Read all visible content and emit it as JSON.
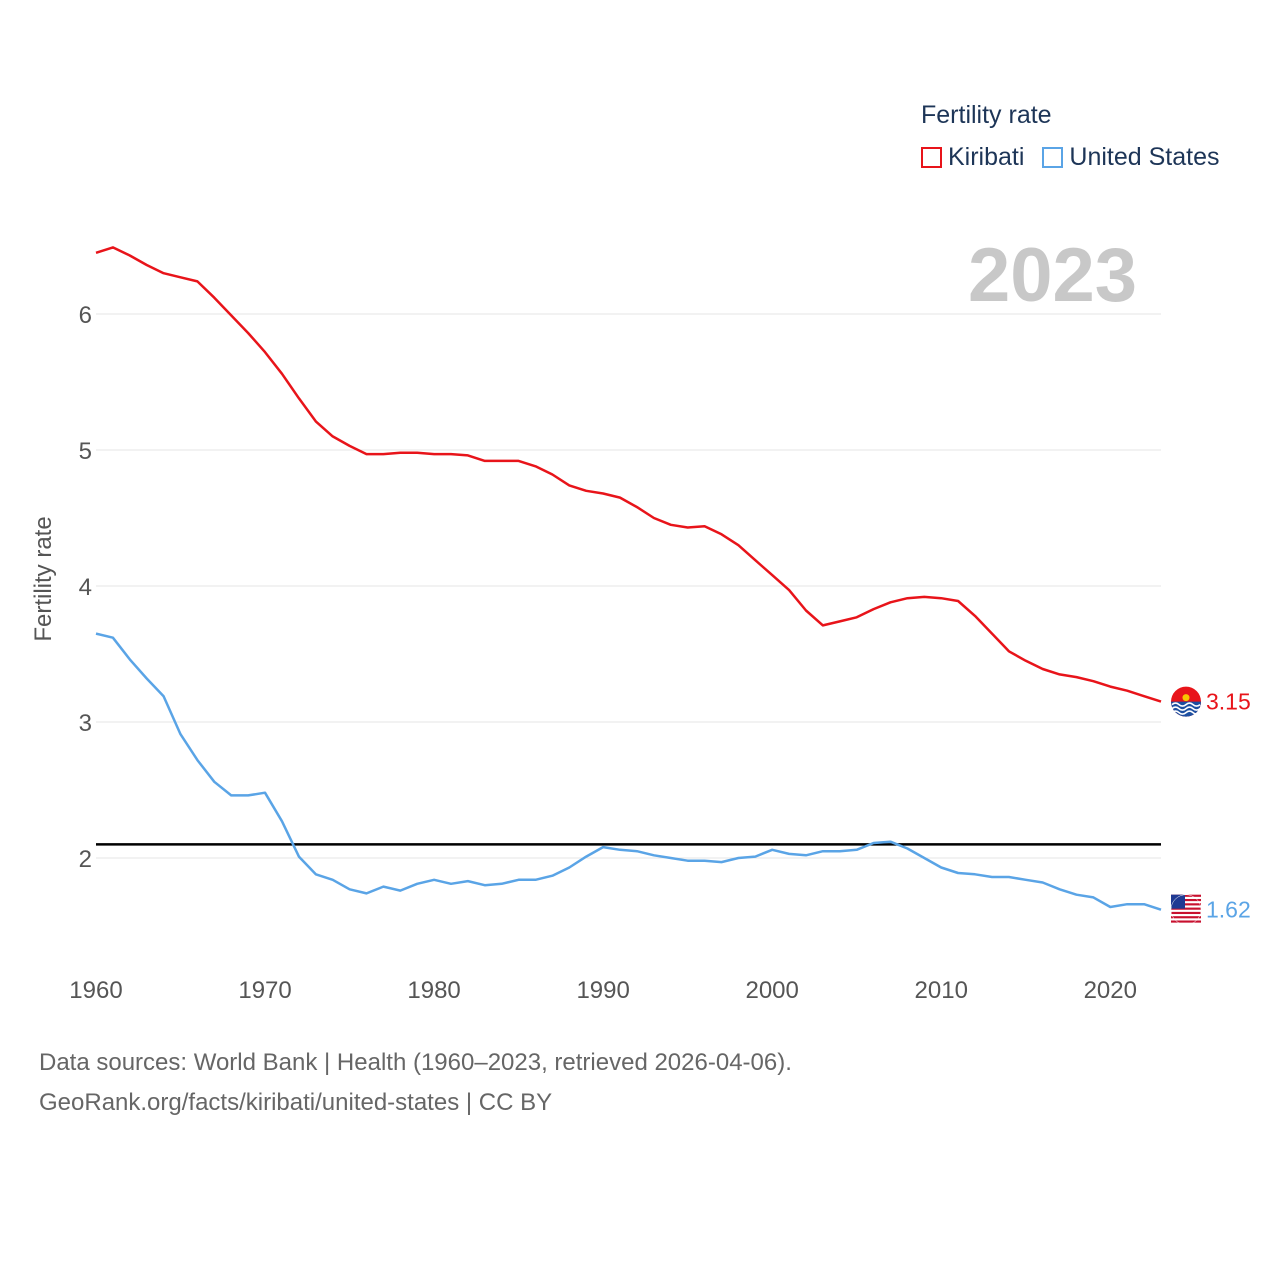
{
  "legend": {
    "title": "Fertility rate",
    "items": [
      {
        "label": "Kiribati",
        "color": "#e8141a"
      },
      {
        "label": "United States",
        "color": "#5aa4e6"
      }
    ]
  },
  "year_label": "2023",
  "footer": {
    "line1": "Data sources: World Bank | Health (1960–2023, retrieved 2026-04-06).",
    "line2": "GeoRank.org/facts/kiribati/united-states | CC BY"
  },
  "chart_data": {
    "type": "line",
    "title": "",
    "xlabel": "",
    "ylabel": "Fertility rate",
    "xlim": [
      1960,
      2023
    ],
    "ylim": [
      1.35,
      6.75
    ],
    "xticks": [
      1960,
      1970,
      1980,
      1990,
      2000,
      2010,
      2020
    ],
    "yticks": [
      2,
      3,
      4,
      5,
      6
    ],
    "reference_line": 2.1,
    "x": [
      1960,
      1961,
      1962,
      1963,
      1964,
      1965,
      1966,
      1967,
      1968,
      1969,
      1970,
      1971,
      1972,
      1973,
      1974,
      1975,
      1976,
      1977,
      1978,
      1979,
      1980,
      1981,
      1982,
      1983,
      1984,
      1985,
      1986,
      1987,
      1988,
      1989,
      1990,
      1991,
      1992,
      1993,
      1994,
      1995,
      1996,
      1997,
      1998,
      1999,
      2000,
      2001,
      2002,
      2003,
      2004,
      2005,
      2006,
      2007,
      2008,
      2009,
      2010,
      2011,
      2012,
      2013,
      2014,
      2015,
      2016,
      2017,
      2018,
      2019,
      2020,
      2021,
      2022,
      2023
    ],
    "series": [
      {
        "name": "Kiribati",
        "color": "#e8141a",
        "end_label": "3.15",
        "values": [
          6.45,
          6.49,
          6.43,
          6.36,
          6.3,
          6.27,
          6.24,
          6.12,
          5.99,
          5.86,
          5.72,
          5.56,
          5.38,
          5.21,
          5.1,
          5.03,
          4.97,
          4.97,
          4.98,
          4.98,
          4.97,
          4.97,
          4.96,
          4.92,
          4.92,
          4.92,
          4.88,
          4.82,
          4.74,
          4.7,
          4.68,
          4.65,
          4.58,
          4.5,
          4.45,
          4.43,
          4.44,
          4.38,
          4.3,
          4.19,
          4.08,
          3.97,
          3.82,
          3.71,
          3.74,
          3.77,
          3.83,
          3.88,
          3.91,
          3.92,
          3.91,
          3.89,
          3.78,
          3.65,
          3.52,
          3.45,
          3.39,
          3.35,
          3.33,
          3.3,
          3.26,
          3.23,
          3.19,
          3.15
        ]
      },
      {
        "name": "United States",
        "color": "#5aa4e6",
        "end_label": "1.62",
        "values": [
          3.65,
          3.62,
          3.46,
          3.32,
          3.19,
          2.91,
          2.72,
          2.56,
          2.46,
          2.46,
          2.48,
          2.27,
          2.01,
          1.88,
          1.84,
          1.77,
          1.74,
          1.79,
          1.76,
          1.81,
          1.84,
          1.81,
          1.83,
          1.8,
          1.81,
          1.84,
          1.84,
          1.87,
          1.93,
          2.01,
          2.08,
          2.06,
          2.05,
          2.02,
          2.0,
          1.98,
          1.98,
          1.97,
          2.0,
          2.01,
          2.06,
          2.03,
          2.02,
          2.05,
          2.05,
          2.06,
          2.11,
          2.12,
          2.07,
          2.0,
          1.93,
          1.89,
          1.88,
          1.86,
          1.86,
          1.84,
          1.82,
          1.77,
          1.73,
          1.71,
          1.64,
          1.66,
          1.66,
          1.62
        ]
      }
    ]
  }
}
